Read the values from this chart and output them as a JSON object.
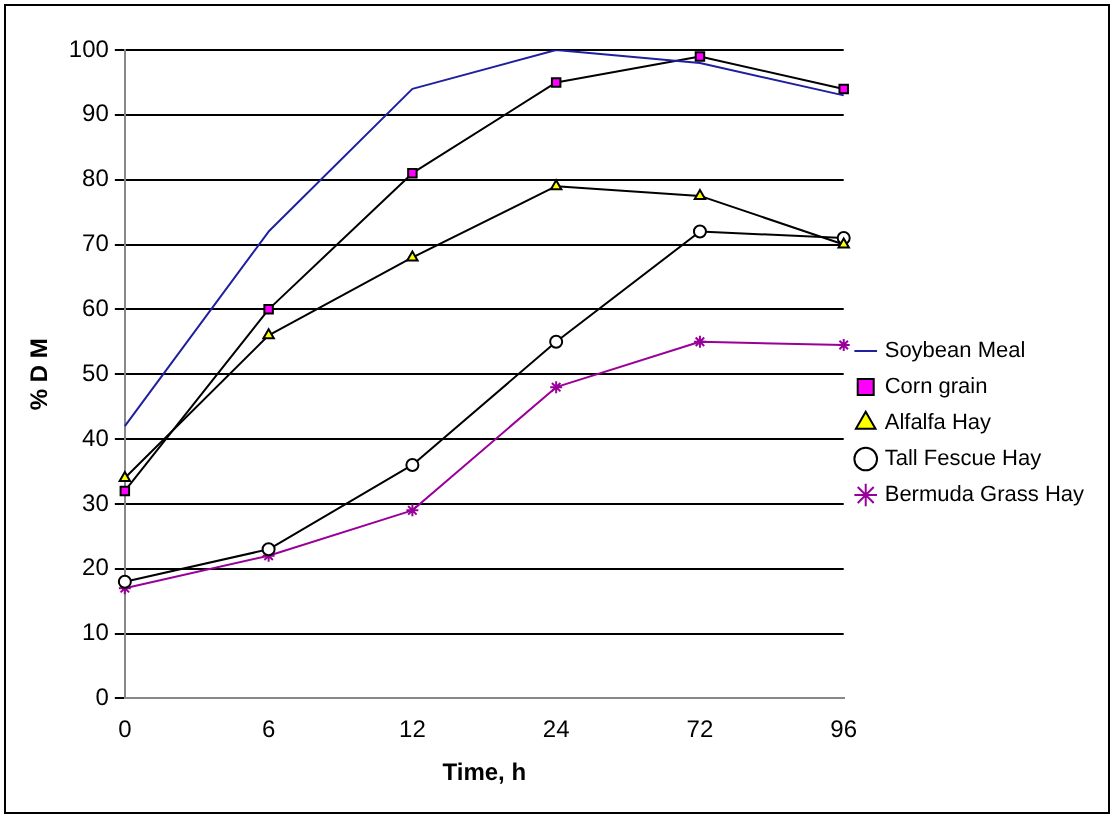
{
  "chart_data": {
    "type": "line",
    "xlabel": "Time, h",
    "ylabel": "% D M",
    "categories": [
      "0",
      "6",
      "12",
      "24",
      "72",
      "96"
    ],
    "ylim": [
      0,
      100
    ],
    "yticks": [
      0,
      10,
      20,
      30,
      40,
      50,
      60,
      70,
      80,
      90,
      100
    ],
    "grid": "y",
    "legend": "right",
    "line_style": "solid",
    "series": [
      {
        "name": "Soybean Meal",
        "color": "#1f1fa0",
        "marker": "none",
        "values": [
          42,
          72,
          94,
          100,
          98,
          93
        ]
      },
      {
        "name": "Corn grain",
        "color": "#000000",
        "marker": "square",
        "colors": [
          "#ff00ff",
          "#ff00ff",
          "#ff00ff",
          "#ff00ff",
          "#ff00ff",
          "#ff00ff"
        ],
        "values": [
          32,
          60,
          81,
          95,
          99,
          94
        ]
      },
      {
        "name": "Alfalfa Hay",
        "color": "#000000",
        "marker": "triangle",
        "colors": [
          "#ffff00",
          "#ffff00",
          "#ffff00",
          "#ffff00",
          "#ffff00",
          "#ffff00"
        ],
        "values": [
          34,
          56,
          68,
          79,
          77.5,
          70
        ]
      },
      {
        "name": "Tall Fescue Hay",
        "color": "#000000",
        "marker": "circle",
        "colors": [
          "#ffffff",
          "#ffffff",
          "#ffffff",
          "#ffffff",
          "#ffffff",
          "#ffffff"
        ],
        "values": [
          18,
          23,
          36,
          55,
          72,
          71
        ]
      },
      {
        "name": "Bermuda Grass Hay",
        "color": "#990099",
        "marker": "cross",
        "values": [
          17,
          22,
          29,
          48,
          55,
          54.5
        ]
      }
    ]
  }
}
